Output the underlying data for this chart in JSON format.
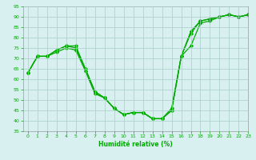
{
  "line1": {
    "x": [
      0,
      1,
      2,
      3,
      4,
      5,
      6,
      7,
      8,
      9,
      10,
      11,
      12,
      13,
      14,
      15,
      16,
      17,
      18,
      19,
      20,
      21,
      22,
      23
    ],
    "y": [
      63,
      71,
      71,
      73,
      75,
      74,
      64,
      53,
      51,
      46,
      43,
      44,
      44,
      41,
      41,
      45,
      71,
      83,
      88,
      89,
      90,
      91,
      90,
      91
    ]
  },
  "line2": {
    "x": [
      0,
      1,
      2,
      3,
      4,
      5,
      6,
      7,
      8,
      9,
      10,
      11,
      12,
      13,
      14,
      15,
      16,
      17,
      18,
      19,
      20,
      21,
      22,
      23
    ],
    "y": [
      63,
      71,
      71,
      74,
      76,
      75,
      65,
      54,
      51,
      46,
      43,
      44,
      44,
      41,
      41,
      45,
      71,
      82,
      88,
      89,
      90,
      91,
      90,
      91
    ]
  },
  "line3": {
    "x": [
      0,
      1,
      2,
      3,
      4,
      5,
      6,
      7,
      8,
      9,
      10,
      11,
      12,
      13,
      14,
      15,
      16,
      17,
      18,
      19,
      20,
      21,
      22,
      23
    ],
    "y": [
      63,
      71,
      71,
      74,
      76,
      76,
      65,
      54,
      51,
      46,
      43,
      44,
      44,
      41,
      41,
      46,
      71,
      76,
      87,
      88,
      90,
      91,
      90,
      91
    ]
  },
  "xlabel": "Humidité relative (%)",
  "ylim": [
    35,
    95
  ],
  "xlim": [
    -0.5,
    23
  ],
  "yticks": [
    35,
    40,
    45,
    50,
    55,
    60,
    65,
    70,
    75,
    80,
    85,
    90,
    95
  ],
  "xticks": [
    0,
    1,
    2,
    3,
    4,
    5,
    6,
    7,
    8,
    9,
    10,
    11,
    12,
    13,
    14,
    15,
    16,
    17,
    18,
    19,
    20,
    21,
    22,
    23
  ],
  "line_color": "#00aa00",
  "bg_color": "#d8f0f0",
  "grid_color": "#aacccc",
  "tick_label_color": "#00aa00",
  "xlabel_color": "#00aa00",
  "marker": "D",
  "markersize": 2.2,
  "linewidth": 0.9
}
